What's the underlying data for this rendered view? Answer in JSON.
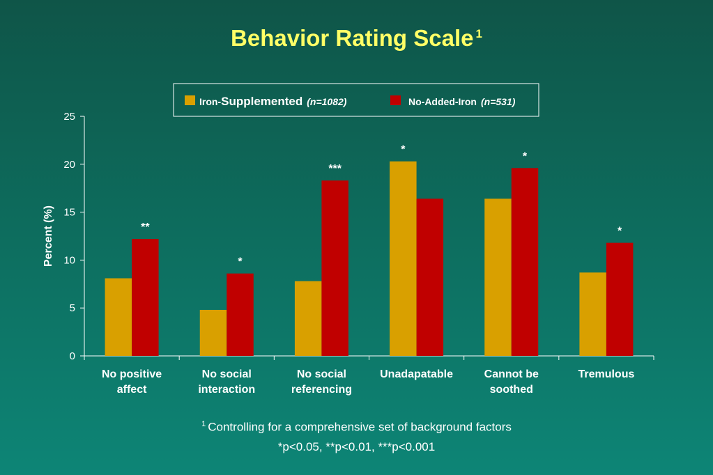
{
  "title": "Behavior Rating Scale",
  "title_superscript": "1",
  "colors": {
    "background": "#0d6b5c",
    "title": "#ffff66",
    "series_iron": "#d9a000",
    "series_no_iron": "#c00000",
    "axis": "#ffffff"
  },
  "chart_data": {
    "type": "bar",
    "title": "Behavior Rating Scale",
    "ylabel": "Percent (%)",
    "xlabel": "",
    "ylim": [
      0,
      25
    ],
    "yticks": [
      0,
      5,
      10,
      15,
      20,
      25
    ],
    "grid": false,
    "legend_position": "top",
    "categories": [
      [
        "No positive",
        "affect"
      ],
      [
        "No social",
        "interaction"
      ],
      [
        "No social",
        "referencing"
      ],
      [
        "Unadapatable"
      ],
      [
        "Cannot be",
        "soothed"
      ],
      [
        "Tremulous"
      ]
    ],
    "series": [
      {
        "name": "Iron-Supplemented",
        "name_prefix": "Iron-",
        "name_main": "Supplemented",
        "n_label": "(n=1082)",
        "color": "#d9a000",
        "values": [
          8.1,
          4.8,
          7.8,
          20.3,
          16.4,
          8.7
        ]
      },
      {
        "name": "No-Added-Iron",
        "n_label": "(n=531)",
        "color": "#c00000",
        "values": [
          12.2,
          8.6,
          18.3,
          16.4,
          19.6,
          11.8
        ]
      }
    ],
    "significance": [
      "**",
      "*",
      "***",
      "*",
      "*",
      "*"
    ],
    "significance_on_series": [
      1,
      1,
      1,
      0,
      1,
      1
    ]
  },
  "footnotes": {
    "superscript": "1",
    "line1": "Controlling for a comprehensive set of background factors",
    "line2": "*p<0.05, **p<0.01,  ***p<0.001"
  }
}
